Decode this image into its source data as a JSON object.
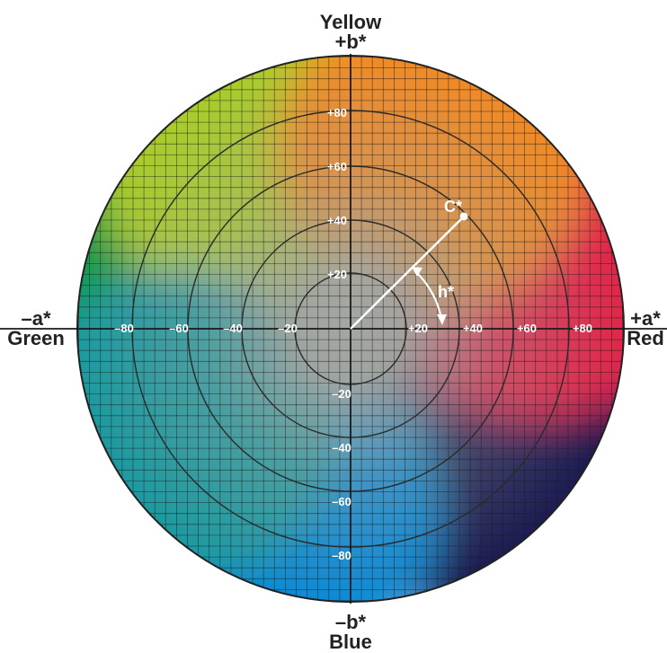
{
  "axes": {
    "top": {
      "name": "Yellow",
      "symbol": "+b*"
    },
    "bottom": {
      "symbol": "–b*",
      "name": "Blue"
    },
    "left": {
      "symbol": "–a*",
      "name": "Green"
    },
    "right": {
      "symbol": "+a*",
      "name": "Red"
    }
  },
  "ticks": {
    "a_neg": [
      "–80",
      "–60",
      "–40",
      "–20"
    ],
    "a_pos": [
      "+20",
      "+40",
      "+60",
      "+80"
    ],
    "b_pos": [
      "+20",
      "+40",
      "+60",
      "+80"
    ],
    "b_neg": [
      "–20",
      "–40",
      "–60",
      "–80"
    ]
  },
  "annotations": {
    "chroma": "C*",
    "hue": "h*"
  },
  "sample_point": {
    "a": 42,
    "b": 42
  },
  "colors": {
    "center": "#a3a6a2",
    "yellow": "#f6ec2a",
    "red": "#e3202f",
    "magenta": "#d8166a",
    "navy": "#1f1a52",
    "blue": "#0f8ad4",
    "green": "#0f9a46",
    "outline": "#222222"
  }
}
